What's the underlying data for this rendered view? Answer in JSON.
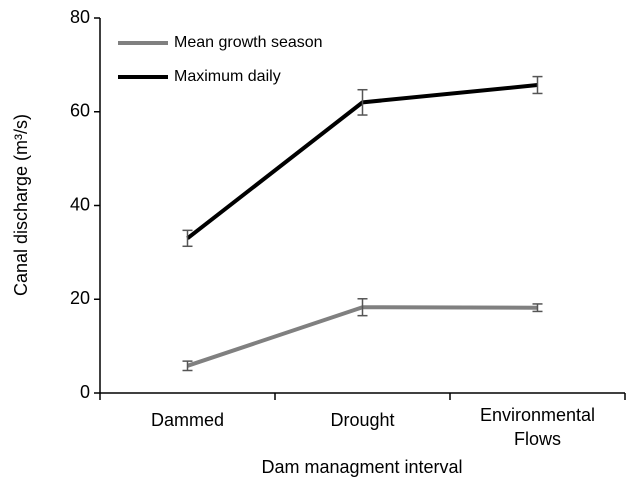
{
  "chart_data": {
    "type": "line",
    "xlabel": "Dam managment interval",
    "ylabel": "Canal discharge (m³/s)",
    "categories": [
      "Dammed",
      "Drought",
      "Environmental Flows"
    ],
    "series": [
      {
        "name": "Mean growth season",
        "color": "#808080",
        "values": [
          5.8,
          18.3,
          18.2
        ],
        "errors": [
          1.0,
          1.8,
          0.8
        ]
      },
      {
        "name": "Maximum daily",
        "color": "#000000",
        "values": [
          33,
          62,
          65.7
        ],
        "errors": [
          1.7,
          2.7,
          1.8
        ]
      }
    ],
    "ylim": [
      0,
      80
    ],
    "yticks": [
      0,
      20,
      40,
      60,
      80
    ],
    "legend": "upper left",
    "grid": false
  }
}
